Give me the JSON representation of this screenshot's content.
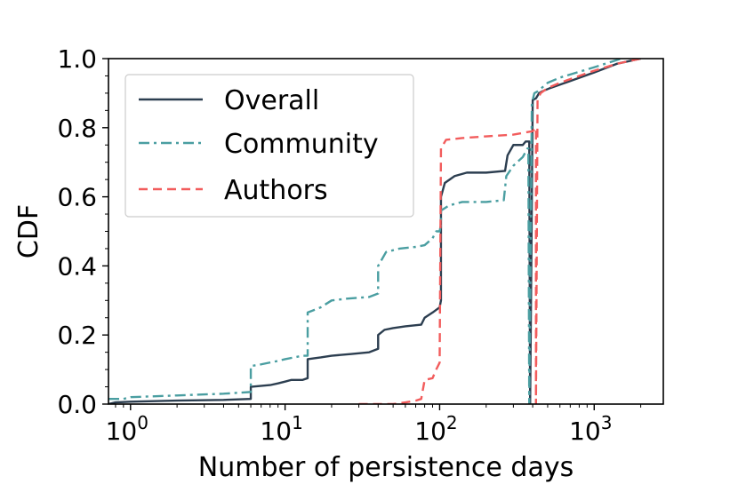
{
  "chart_data": {
    "type": "line",
    "title": "",
    "xlabel": "Number of persistence days",
    "ylabel": "CDF",
    "xscale": "log",
    "xlim": [
      0.72,
      2800
    ],
    "ylim": [
      0.0,
      1.0
    ],
    "grid": false,
    "legend_position": "top-left",
    "x_ticks": [
      {
        "value": 1,
        "base": "10",
        "exp": "0"
      },
      {
        "value": 10,
        "base": "10",
        "exp": "1"
      },
      {
        "value": 100,
        "base": "10",
        "exp": "2"
      },
      {
        "value": 1000,
        "base": "10",
        "exp": "3"
      }
    ],
    "y_ticks": [
      {
        "value": 0.0,
        "label": "0.0"
      },
      {
        "value": 0.2,
        "label": "0.2"
      },
      {
        "value": 0.4,
        "label": "0.4"
      },
      {
        "value": 0.6,
        "label": "0.6"
      },
      {
        "value": 0.8,
        "label": "0.8"
      },
      {
        "value": 1.0,
        "label": "1.0"
      }
    ],
    "series": [
      {
        "name": "Overall",
        "color": "#2c3e50",
        "dash": "solid",
        "points": [
          [
            0.72,
            0.0
          ],
          [
            0.8,
            0.005
          ],
          [
            1.0,
            0.007
          ],
          [
            2.0,
            0.01
          ],
          [
            4.0,
            0.012
          ],
          [
            6.0,
            0.015
          ],
          [
            6.0,
            0.05
          ],
          [
            8.0,
            0.055
          ],
          [
            9.0,
            0.06
          ],
          [
            10.0,
            0.065
          ],
          [
            11.0,
            0.07
          ],
          [
            13.0,
            0.07
          ],
          [
            14.0,
            0.075
          ],
          [
            14.0,
            0.13
          ],
          [
            17.0,
            0.135
          ],
          [
            20.0,
            0.14
          ],
          [
            27.0,
            0.145
          ],
          [
            35.0,
            0.15
          ],
          [
            40.0,
            0.16
          ],
          [
            40.0,
            0.2
          ],
          [
            44.0,
            0.215
          ],
          [
            50.0,
            0.22
          ],
          [
            60.0,
            0.225
          ],
          [
            76.0,
            0.23
          ],
          [
            80.0,
            0.25
          ],
          [
            90.0,
            0.265
          ],
          [
            100.0,
            0.28
          ],
          [
            102.0,
            0.3
          ],
          [
            102.0,
            0.6
          ],
          [
            108.0,
            0.64
          ],
          [
            125.0,
            0.66
          ],
          [
            150.0,
            0.67
          ],
          [
            200.0,
            0.67
          ],
          [
            265.0,
            0.675
          ],
          [
            275.0,
            0.72
          ],
          [
            300.0,
            0.75
          ],
          [
            345.0,
            0.75
          ],
          [
            360.0,
            0.76
          ],
          [
            380.0,
            0.76
          ],
          [
            385.0,
            0.0
          ],
          [
            400.0,
            0.88
          ],
          [
            420.0,
            0.885
          ],
          [
            440.0,
            0.9
          ],
          [
            460.0,
            0.905
          ],
          [
            520.0,
            0.915
          ],
          [
            700.0,
            0.935
          ],
          [
            1000.0,
            0.96
          ],
          [
            1400.0,
            0.985
          ],
          [
            2000.0,
            1.0
          ]
        ]
      },
      {
        "name": "Community",
        "color": "#4a9ea1",
        "dash": "dashdot",
        "points": [
          [
            0.72,
            0.015
          ],
          [
            0.9,
            0.015
          ],
          [
            1.0,
            0.02
          ],
          [
            2.0,
            0.025
          ],
          [
            4.0,
            0.03
          ],
          [
            6.0,
            0.035
          ],
          [
            6.0,
            0.11
          ],
          [
            7.0,
            0.115
          ],
          [
            9.0,
            0.125
          ],
          [
            10.0,
            0.13
          ],
          [
            13.0,
            0.14
          ],
          [
            14.0,
            0.14
          ],
          [
            14.0,
            0.265
          ],
          [
            17.0,
            0.28
          ],
          [
            20.0,
            0.3
          ],
          [
            25.0,
            0.305
          ],
          [
            35.0,
            0.31
          ],
          [
            40.0,
            0.32
          ],
          [
            40.0,
            0.4
          ],
          [
            45.0,
            0.44
          ],
          [
            55.0,
            0.45
          ],
          [
            70.0,
            0.455
          ],
          [
            80.0,
            0.46
          ],
          [
            90.0,
            0.48
          ],
          [
            95.0,
            0.5
          ],
          [
            100.0,
            0.5
          ],
          [
            102.0,
            0.52
          ],
          [
            102.0,
            0.56
          ],
          [
            115.0,
            0.575
          ],
          [
            140.0,
            0.585
          ],
          [
            200.0,
            0.585
          ],
          [
            260.0,
            0.59
          ],
          [
            270.0,
            0.66
          ],
          [
            300.0,
            0.69
          ],
          [
            345.0,
            0.715
          ],
          [
            370.0,
            0.74
          ],
          [
            375.0,
            0.74
          ],
          [
            380.0,
            0.0
          ],
          [
            395.0,
            0.87
          ],
          [
            410.0,
            0.9
          ],
          [
            430.0,
            0.905
          ],
          [
            500.0,
            0.93
          ],
          [
            600.0,
            0.945
          ],
          [
            1000.0,
            0.975
          ],
          [
            1500.0,
            1.0
          ]
        ]
      },
      {
        "name": "Authors",
        "color": "#f25c5c",
        "dash": "dashed",
        "points": [
          [
            30.0,
            0.0
          ],
          [
            50.0,
            0.0
          ],
          [
            60.0,
            0.005
          ],
          [
            70.0,
            0.01
          ],
          [
            76.0,
            0.015
          ],
          [
            80.0,
            0.07
          ],
          [
            90.0,
            0.075
          ],
          [
            95.0,
            0.1
          ],
          [
            100.0,
            0.12
          ],
          [
            102.0,
            0.74
          ],
          [
            110.0,
            0.765
          ],
          [
            140.0,
            0.77
          ],
          [
            200.0,
            0.775
          ],
          [
            300.0,
            0.78
          ],
          [
            400.0,
            0.79
          ],
          [
            420.0,
            0.8
          ],
          [
            420.0,
            0.0
          ],
          [
            430.0,
            0.88
          ],
          [
            450.0,
            0.9
          ],
          [
            500.0,
            0.915
          ],
          [
            600.0,
            0.93
          ],
          [
            800.0,
            0.95
          ],
          [
            1000.0,
            0.965
          ],
          [
            1400.0,
            0.985
          ],
          [
            2000.0,
            1.0
          ]
        ]
      }
    ]
  }
}
